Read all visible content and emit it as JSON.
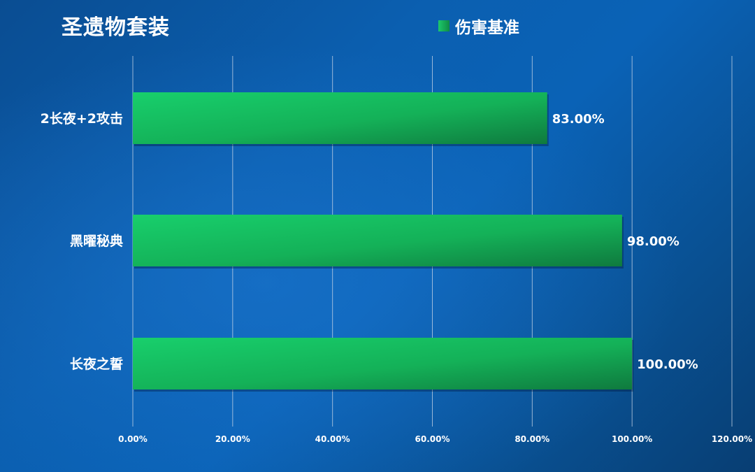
{
  "chart_data": {
    "type": "bar",
    "orientation": "horizontal",
    "title": "圣遗物套装",
    "categories": [
      "2长夜+2攻击",
      "黑曜秘典",
      "长夜之誓"
    ],
    "series": [
      {
        "name": "伤害基准",
        "values": [
          83.0,
          98.0,
          100.0
        ]
      }
    ],
    "data_labels": [
      "83.00%",
      "98.00%",
      "100.00%"
    ],
    "x_ticks": [
      "0.00%",
      "20.00%",
      "40.00%",
      "60.00%",
      "80.00%",
      "100.00%",
      "120.00%"
    ],
    "xlim": [
      0,
      120
    ],
    "grid": true,
    "legend_position": "top-center",
    "colors": {
      "bar_start": "#18cf6c",
      "bar_end": "#0f7a3e",
      "grid": "#c9d6e6",
      "text": "#ffffff"
    }
  }
}
